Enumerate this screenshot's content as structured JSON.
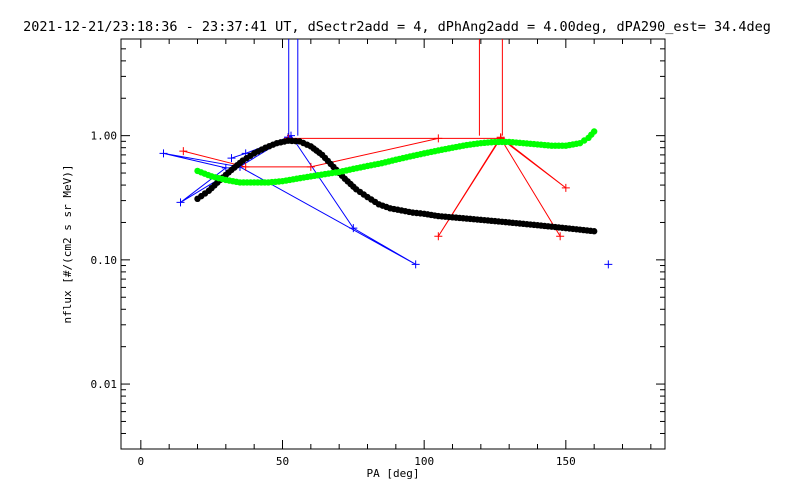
{
  "chart_data": {
    "type": "line",
    "title": "2021-12-21/23:18:36 - 23:37:41 UT, dSectr2add = 4, dPhAng2add = 4.00deg, dPA290_est=  34.4deg",
    "xlabel": "PA [deg]",
    "ylabel": "nflux [#/(cm2 s sr MeV)]",
    "xlim": [
      -7,
      185
    ],
    "ylim": [
      0.003,
      6
    ],
    "yscale": "log",
    "grid": false,
    "x_ticks": [
      0,
      50,
      100,
      150
    ],
    "x_tick_labels": [
      "0",
      "50",
      "100",
      "150"
    ],
    "y_ticks": [
      0.01,
      0.1,
      1.0
    ],
    "y_tick_labels": [
      "0.01",
      "0.10",
      "1.00"
    ],
    "colors": {
      "blue": "#0000ff",
      "red": "#ff0000",
      "black": "#000000",
      "green": "#00ff00"
    },
    "vertical_markers": [
      {
        "color": "#0000ff",
        "x": [
          52.2,
          55.4
        ],
        "y_from": 1.0
      },
      {
        "color": "#ff0000",
        "x": [
          119.5,
          127.6
        ],
        "y_from": 1.0
      }
    ],
    "series": [
      {
        "color": "#0000ff",
        "style": "line-plus",
        "x": [
          32,
          37,
          52,
          53,
          75,
          97,
          35,
          8,
          30,
          14,
          52
        ],
        "y": [
          0.66,
          0.72,
          0.97,
          1.0,
          0.18,
          0.092,
          0.56,
          0.72,
          0.55,
          0.29,
          0.97
        ]
      },
      {
        "color": "#0000ff",
        "style": "plus",
        "x": [
          165
        ],
        "y": [
          0.092
        ]
      },
      {
        "color": "#ff0000",
        "style": "line-plus",
        "x": [
          15,
          37,
          60,
          105,
          127,
          150,
          127,
          105,
          127,
          148,
          127,
          52
        ],
        "y": [
          0.75,
          0.56,
          0.56,
          0.95,
          0.95,
          0.38,
          0.97,
          0.155,
          0.95,
          0.155,
          0.95,
          0.95
        ]
      },
      {
        "color": "#000000",
        "style": "dots",
        "x": [
          20,
          24,
          28,
          32,
          36,
          40,
          44,
          48,
          52,
          56,
          60,
          64,
          68,
          72,
          76,
          80,
          84,
          88,
          92,
          96,
          100,
          105,
          110,
          115,
          120,
          125,
          130,
          135,
          140,
          145,
          150,
          155,
          160
        ],
        "y": [
          0.31,
          0.36,
          0.44,
          0.53,
          0.63,
          0.72,
          0.8,
          0.87,
          0.91,
          0.9,
          0.82,
          0.7,
          0.56,
          0.45,
          0.37,
          0.32,
          0.28,
          0.26,
          0.25,
          0.24,
          0.235,
          0.225,
          0.22,
          0.215,
          0.21,
          0.205,
          0.2,
          0.195,
          0.19,
          0.185,
          0.18,
          0.175,
          0.17
        ]
      },
      {
        "color": "#00ff00",
        "style": "dots",
        "x": [
          20,
          25,
          30,
          35,
          40,
          45,
          50,
          55,
          60,
          65,
          70,
          75,
          80,
          85,
          90,
          95,
          100,
          105,
          110,
          115,
          120,
          125,
          130,
          135,
          140,
          145,
          150,
          155,
          158,
          160
        ],
        "y": [
          0.52,
          0.47,
          0.44,
          0.42,
          0.42,
          0.42,
          0.43,
          0.45,
          0.47,
          0.49,
          0.51,
          0.54,
          0.57,
          0.6,
          0.64,
          0.68,
          0.72,
          0.76,
          0.8,
          0.84,
          0.87,
          0.89,
          0.89,
          0.87,
          0.85,
          0.83,
          0.83,
          0.87,
          0.96,
          1.08
        ]
      }
    ]
  }
}
